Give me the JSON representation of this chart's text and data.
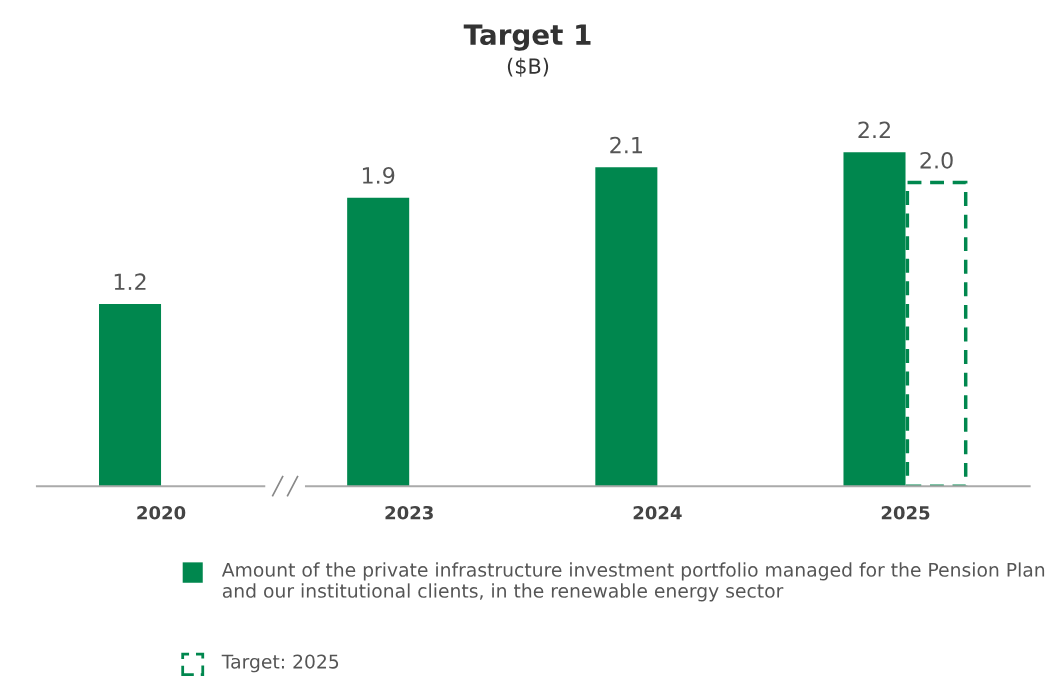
{
  "chart_data": {
    "type": "bar",
    "title": "Target 1",
    "subtitle": "($B)",
    "categories": [
      "2020",
      "2023",
      "2024",
      "2025"
    ],
    "series": [
      {
        "name": "Amount of the private infrastructure investment portfolio managed for the Pension Plan and our institutional clients, in the renewable energy sector",
        "color": "#00874e",
        "values": [
          1.2,
          1.9,
          2.1,
          2.2
        ],
        "value_labels": [
          "1.2",
          "1.9",
          "2.1",
          "2.2"
        ]
      },
      {
        "name": "Target: 2025",
        "color": "#00874e",
        "values": [
          null,
          null,
          null,
          2.0
        ],
        "value_labels": [
          null,
          null,
          null,
          "2.0"
        ],
        "line_style": "dashed"
      }
    ],
    "tick_labels": "x",
    "grid": false,
    "legend": "bottom"
  }
}
